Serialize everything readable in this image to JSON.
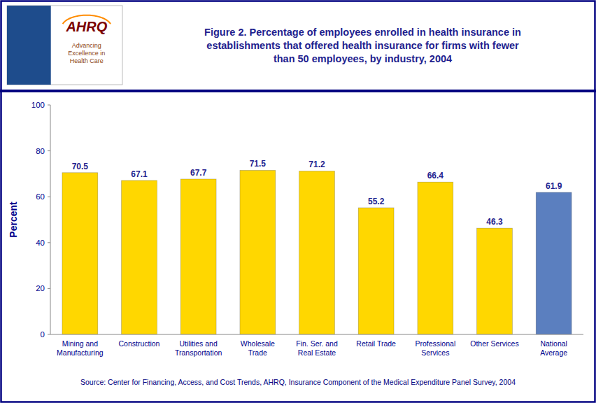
{
  "chart_data": {
    "type": "bar",
    "title": "Figure 2. Percentage of employees enrolled in health insurance in\nestablishments that offered health insurance for firms with fewer\nthan 50 employees, by industry, 2004",
    "categories": [
      "Mining and\nManufacturing",
      "Construction",
      "Utilities and\nTransportation",
      "Wholesale\nTrade",
      "Fin. Ser. and\nReal Estate",
      "Retail Trade",
      "Professional\nServices",
      "Other Services",
      "National\nAverage"
    ],
    "values": [
      70.5,
      67.1,
      67.7,
      71.5,
      71.2,
      55.2,
      66.4,
      46.3,
      61.9
    ],
    "colors": [
      "#FFD700",
      "#FFD700",
      "#FFD700",
      "#FFD700",
      "#FFD700",
      "#FFD700",
      "#FFD700",
      "#FFD700",
      "#5B7FBF"
    ],
    "y_label": "Percent",
    "ylim": [
      0,
      100
    ],
    "yticks": [
      0,
      20,
      40,
      60,
      80,
      100
    ],
    "grid": false,
    "data_labels": true,
    "source": "Source: Center for Financing, Access, and Cost Trends, AHRQ, Insurance Component of the Medical Expenditure Panel Survey, 2004",
    "annotations": [
      "AHRQ",
      "Advancing\nExcellence in\nHealth Care"
    ]
  }
}
